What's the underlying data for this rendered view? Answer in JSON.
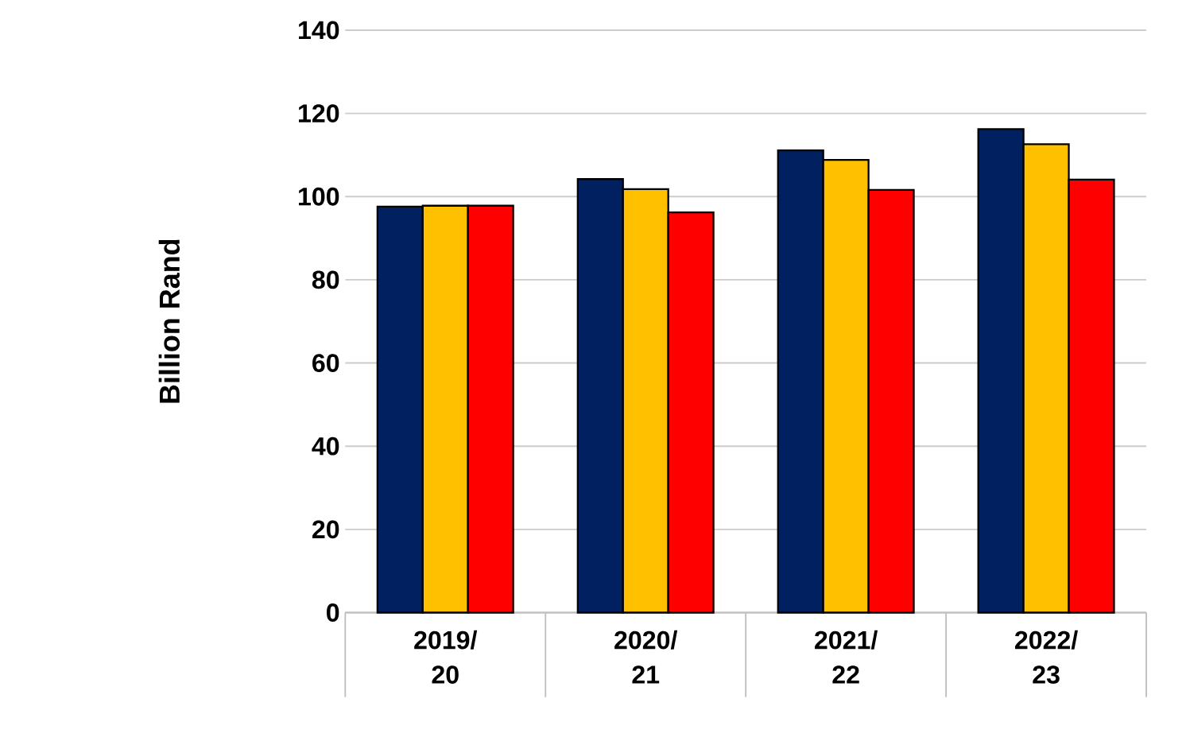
{
  "chart_data": {
    "type": "bar",
    "ylabel": "Billion Rand",
    "categories": [
      "2019/20",
      "2020/21",
      "2021/22",
      "2022/23"
    ],
    "series": [
      {
        "color": "#002060",
        "values": [
          97.6,
          104.2,
          111.1,
          116.2
        ]
      },
      {
        "color": "#ffc000",
        "values": [
          97.8,
          101.8,
          108.8,
          112.6
        ]
      },
      {
        "color": "#ff0000",
        "values": [
          97.8,
          96.2,
          101.6,
          104.1
        ]
      }
    ],
    "ylim": [
      0,
      140
    ],
    "yticks": [
      0,
      20,
      40,
      60,
      80,
      100,
      120,
      140
    ],
    "grid": "y"
  }
}
